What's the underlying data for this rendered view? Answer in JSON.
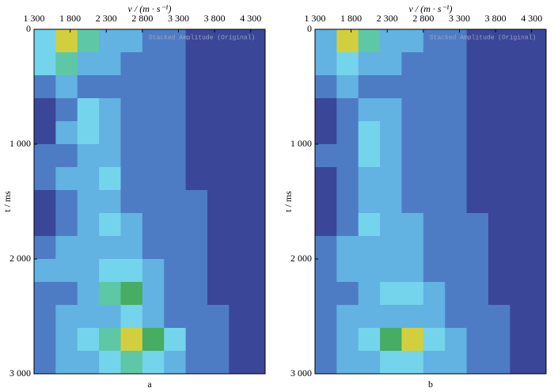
{
  "chart_data": [
    {
      "type": "heatmap",
      "panel": "a",
      "annotation": "Stacked Amplitude (Original)",
      "xlabel": "v / (m · s⁻¹)",
      "ylabel": "t / ms",
      "xlim": [
        1300,
        4500
      ],
      "ylim": [
        0,
        3000
      ],
      "xticks": [
        {
          "value": 1300,
          "label": "1 300"
        },
        {
          "value": 1800,
          "label": "1 800"
        },
        {
          "value": 2300,
          "label": "2 300"
        },
        {
          "value": 2800,
          "label": "2 800"
        },
        {
          "value": 3300,
          "label": "3 300"
        },
        {
          "value": 3800,
          "label": "3 800"
        },
        {
          "value": 4300,
          "label": "4 300"
        }
      ],
      "yticks": [
        0,
        {
          "value": 1000,
          "label": "1 000"
        },
        {
          "value": 2000,
          "label": "2 000"
        },
        {
          "value": 3000,
          "label": "3 000"
        }
      ],
      "colors": [
        "#3a4698",
        "#4d7cc4",
        "#62b2e2",
        "#74d4ec",
        "#5ec7a6",
        "#46ad62",
        "#d2cf3e"
      ],
      "x": [
        1450,
        1750,
        2050,
        2350,
        2650,
        2950,
        3250,
        3550,
        3850,
        4150
      ],
      "y": [
        100,
        300,
        500,
        700,
        900,
        1100,
        1300,
        1500,
        1700,
        1900,
        2100,
        2300,
        2500,
        2700,
        2900
      ],
      "z": [
        [
          3,
          6,
          4,
          2,
          2,
          1,
          1,
          0,
          0,
          0
        ],
        [
          3,
          4,
          2,
          2,
          1,
          1,
          1,
          0,
          0,
          0
        ],
        [
          1,
          2,
          1,
          1,
          1,
          1,
          1,
          0,
          0,
          0
        ],
        [
          0,
          1,
          3,
          2,
          1,
          1,
          1,
          0,
          0,
          0
        ],
        [
          0,
          2,
          3,
          2,
          1,
          1,
          1,
          0,
          0,
          0
        ],
        [
          1,
          1,
          2,
          2,
          1,
          1,
          1,
          0,
          0,
          0
        ],
        [
          1,
          2,
          2,
          3,
          1,
          1,
          1,
          0,
          0,
          0
        ],
        [
          0,
          1,
          2,
          2,
          1,
          1,
          1,
          1,
          0,
          0
        ],
        [
          0,
          1,
          2,
          3,
          2,
          1,
          1,
          1,
          0,
          0
        ],
        [
          1,
          2,
          2,
          2,
          2,
          1,
          1,
          1,
          0,
          0
        ],
        [
          2,
          2,
          2,
          3,
          3,
          2,
          1,
          1,
          0,
          0
        ],
        [
          1,
          1,
          2,
          4,
          5,
          2,
          1,
          1,
          0,
          0
        ],
        [
          1,
          2,
          2,
          2,
          3,
          2,
          1,
          1,
          1,
          0
        ],
        [
          1,
          2,
          3,
          4,
          6,
          5,
          3,
          1,
          1,
          0
        ],
        [
          1,
          2,
          2,
          3,
          4,
          3,
          2,
          1,
          1,
          0
        ]
      ]
    },
    {
      "type": "heatmap",
      "panel": "b",
      "annotation": "Stacked Amplitude (Original)",
      "xlabel": "v / (m · s⁻¹)",
      "ylabel": "t / ms",
      "xlim": [
        1300,
        4500
      ],
      "ylim": [
        0,
        3000
      ],
      "xticks": [
        {
          "value": 1300,
          "label": "1 300"
        },
        {
          "value": 1800,
          "label": "1 800"
        },
        {
          "value": 2300,
          "label": "2 300"
        },
        {
          "value": 2800,
          "label": "2 800"
        },
        {
          "value": 3300,
          "label": "3 300"
        },
        {
          "value": 3800,
          "label": "3 800"
        },
        {
          "value": 4300,
          "label": "4 300"
        }
      ],
      "yticks": [
        0,
        {
          "value": 1000,
          "label": "1 000"
        },
        {
          "value": 2000,
          "label": "2 000"
        },
        {
          "value": 3000,
          "label": "3 000"
        }
      ],
      "colors": [
        "#3a4698",
        "#4d7cc4",
        "#62b2e2",
        "#74d4ec",
        "#5ec7a6",
        "#46ad62",
        "#d2cf3e"
      ],
      "x": [
        1450,
        1750,
        2050,
        2350,
        2650,
        2950,
        3250,
        3550,
        3850,
        4150
      ],
      "y": [
        100,
        300,
        500,
        700,
        900,
        1100,
        1300,
        1500,
        1700,
        1900,
        2100,
        2300,
        2500,
        2700,
        2900
      ],
      "z": [
        [
          2,
          6,
          4,
          2,
          2,
          1,
          1,
          0,
          0,
          0
        ],
        [
          2,
          3,
          2,
          2,
          1,
          1,
          1,
          0,
          0,
          0
        ],
        [
          1,
          2,
          1,
          1,
          1,
          1,
          1,
          0,
          0,
          0
        ],
        [
          0,
          1,
          2,
          2,
          1,
          1,
          1,
          0,
          0,
          0
        ],
        [
          0,
          1,
          3,
          2,
          1,
          1,
          1,
          0,
          0,
          0
        ],
        [
          1,
          1,
          3,
          2,
          1,
          1,
          1,
          0,
          0,
          0
        ],
        [
          0,
          1,
          2,
          2,
          1,
          1,
          1,
          0,
          0,
          0
        ],
        [
          0,
          1,
          2,
          2,
          1,
          1,
          1,
          0,
          0,
          0
        ],
        [
          0,
          1,
          3,
          2,
          2,
          1,
          1,
          1,
          0,
          0
        ],
        [
          1,
          2,
          2,
          2,
          2,
          1,
          1,
          1,
          0,
          0
        ],
        [
          1,
          2,
          2,
          2,
          2,
          1,
          1,
          1,
          0,
          0
        ],
        [
          1,
          1,
          2,
          3,
          3,
          2,
          1,
          1,
          0,
          0
        ],
        [
          1,
          2,
          2,
          2,
          2,
          2,
          1,
          1,
          1,
          0
        ],
        [
          1,
          2,
          3,
          5,
          6,
          3,
          2,
          1,
          1,
          0
        ],
        [
          1,
          2,
          2,
          3,
          3,
          2,
          2,
          1,
          1,
          0
        ]
      ]
    }
  ]
}
